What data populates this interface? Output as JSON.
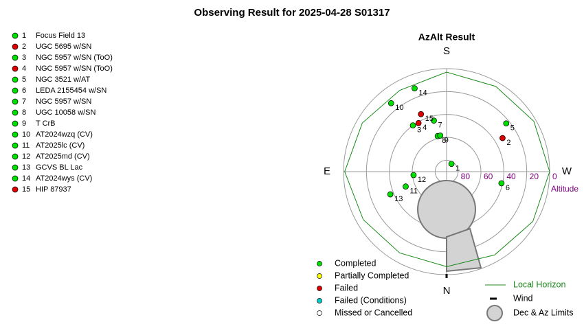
{
  "title": "Observing Result for 2025-04-28 S01317",
  "chart_data": {
    "type": "polar",
    "title": "AzAlt Result",
    "directions": {
      "S": "S",
      "E": "E",
      "W": "W",
      "N": "N"
    },
    "rlabel": "Altitude",
    "rlim": [
      90,
      0
    ],
    "rticks": [
      80,
      60,
      40,
      20,
      0
    ],
    "labels": [
      1,
      2,
      3,
      4,
      5,
      6,
      7,
      8,
      9,
      10,
      11,
      12,
      13,
      14,
      15
    ],
    "names": [
      "Focus Field 13",
      "UGC 5695 w/SN",
      "NGC 5957 w/SN (ToO)",
      "NGC 5957 w/SN (ToO)",
      "NGC 3521 w/AT",
      "LEDA 2155454 w/SN",
      "NGC 5957 w/SN",
      "UGC 10058 w/SN",
      "T CrB",
      "AT2024wzq (CV)",
      "AT2025lc (CV)",
      "AT2025md (CV)",
      "GCVS BL Lac",
      "AT2024wys (CV)",
      "HIP 87937"
    ],
    "status": [
      "Completed",
      "Failed",
      "Completed",
      "Failed",
      "Completed",
      "Completed",
      "Completed",
      "Completed",
      "Completed",
      "Completed",
      "Completed",
      "Completed",
      "Completed",
      "Completed",
      "Failed"
    ],
    "az": [
      212,
      239,
      144,
      150,
      231,
      282,
      166,
      166,
      170,
      141,
      70,
      84,
      68,
      159,
      156
    ],
    "alt": [
      82,
      33,
      40,
      41,
      23,
      41,
      44,
      58,
      58,
      13,
      52,
      61,
      37,
      12,
      35
    ],
    "status_legend": [
      {
        "name": "Completed",
        "color": "#00dd00"
      },
      {
        "name": "Partially Completed",
        "color": "#ffff00"
      },
      {
        "name": "Failed",
        "color": "#dd0000"
      },
      {
        "name": "Failed (Conditions)",
        "color": "#00cccc"
      },
      {
        "name": "Missed or Cancelled",
        "color": "#ffffff"
      }
    ],
    "horizon": {
      "name": "Local Horizon",
      "color": "#1a8a1a",
      "az": [
        0,
        30,
        60,
        90,
        120,
        150,
        180,
        210,
        240,
        270,
        300,
        330,
        360
      ],
      "alt": [
        7,
        8,
        6,
        1,
        5,
        8,
        3,
        4,
        2,
        0,
        3,
        6,
        7
      ]
    },
    "wind_label": "Wind",
    "limits_label": "Dec & Az Limits"
  }
}
